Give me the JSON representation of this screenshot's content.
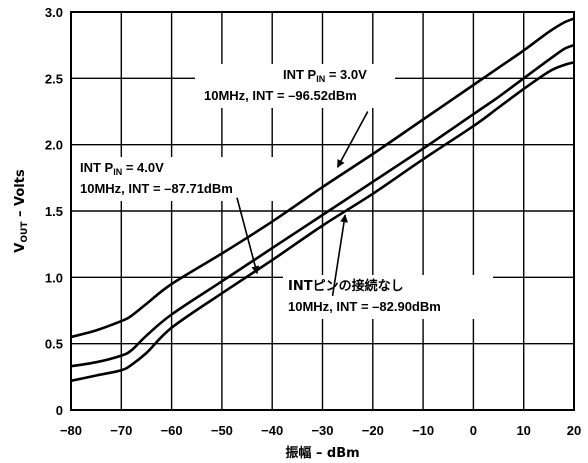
{
  "chart_data": {
    "type": "line",
    "xlabel": "振幅 – dBm",
    "ylabel": {
      "main": "V",
      "sub": "OUT",
      "rest": " – Volts"
    },
    "xlim": [
      -80,
      20
    ],
    "ylim": [
      0,
      3.0
    ],
    "x_ticks": [
      "−80",
      "−70",
      "−60",
      "−50",
      "−40",
      "−30",
      "−20",
      "−10",
      "0",
      "10",
      "20"
    ],
    "y_ticks": [
      "0",
      "0.5",
      "1.0",
      "1.5",
      "2.0",
      "2.5",
      "3.0"
    ],
    "grid": true,
    "series": [
      {
        "name": "INT PIN = 3.0V",
        "x": [
          -80,
          -75,
          -70,
          -68,
          -65,
          -60,
          -50,
          -40,
          -30,
          -20,
          -10,
          0,
          5,
          10,
          15,
          18,
          20
        ],
        "values": [
          0.55,
          0.6,
          0.67,
          0.71,
          0.8,
          0.95,
          1.18,
          1.42,
          1.68,
          1.93,
          2.19,
          2.45,
          2.58,
          2.71,
          2.85,
          2.92,
          2.95
        ]
      },
      {
        "name": "INTピンの接続なし",
        "x": [
          -80,
          -75,
          -70,
          -68,
          -65,
          -60,
          -50,
          -40,
          -30,
          -20,
          -10,
          0,
          5,
          10,
          15,
          18,
          20
        ],
        "values": [
          0.33,
          0.36,
          0.41,
          0.45,
          0.56,
          0.72,
          0.97,
          1.22,
          1.47,
          1.72,
          1.97,
          2.23,
          2.36,
          2.5,
          2.64,
          2.72,
          2.75
        ]
      },
      {
        "name": "INT PIN = 4.0V",
        "x": [
          -80,
          -75,
          -70,
          -68,
          -65,
          -60,
          -50,
          -40,
          -30,
          -20,
          -10,
          0,
          5,
          10,
          15,
          18,
          20
        ],
        "values": [
          0.22,
          0.26,
          0.3,
          0.34,
          0.43,
          0.62,
          0.88,
          1.13,
          1.39,
          1.63,
          1.89,
          2.14,
          2.28,
          2.42,
          2.55,
          2.6,
          2.62
        ]
      }
    ],
    "annotations": [
      {
        "lines": [
          {
            "text": "INT P",
            "sub": "IN",
            "rest": " = 3.0V"
          },
          {
            "text": "10MHz, INT = –96.52dBm"
          }
        ],
        "arrow_from": [
          -21,
          2.25
        ],
        "arrow_to": [
          -27,
          1.83
        ]
      },
      {
        "lines": [
          {
            "text": "INT P",
            "sub": "IN",
            "rest": " = 4.0V"
          },
          {
            "text": "10MHz, INT = –87.71dBm"
          }
        ],
        "arrow_from": [
          -47,
          1.6
        ],
        "arrow_to": [
          -43,
          1.03
        ]
      },
      {
        "lines": [
          {
            "text": "INTピンの接続なし"
          },
          {
            "text": "10MHz, INT = –82.90dBm"
          }
        ],
        "arrow_from": [
          -28,
          0.86
        ],
        "arrow_to": [
          -25.5,
          1.47
        ]
      }
    ]
  }
}
